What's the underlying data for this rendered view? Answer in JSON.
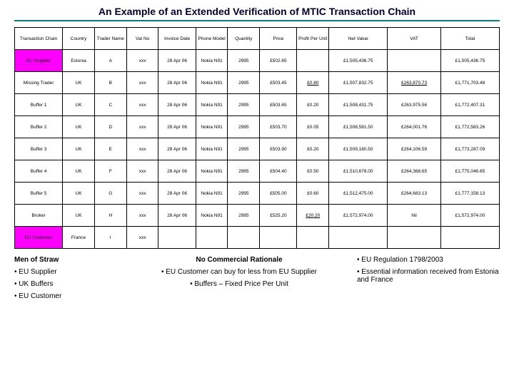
{
  "title": "An Example of an Extended Verification of MTIC Transaction Chain",
  "columns": [
    "Transaction Chain",
    "Country",
    "Trader Name",
    "Vat No",
    "Invoice Date",
    "Phone Model",
    "Quantity",
    "Price",
    "Profit Per Unit",
    "Net Value",
    "VAT",
    "Total"
  ],
  "rows": [
    {
      "chain": "EU Supplier",
      "country": "Estonia",
      "trader": "A",
      "vat": "xxx",
      "date": "28 Apr 06",
      "model": "Nokia N91",
      "qty": "2995",
      "price": "£502.65",
      "profit": "",
      "net": "£1,505,436.75",
      "vatv": "",
      "total": "£1,505,436.75",
      "hl": true
    },
    {
      "chain": "Missing Trader",
      "country": "UK",
      "trader": "B",
      "vat": "xxx",
      "date": "28 Apr 06",
      "model": "Nokia N91",
      "qty": "2995",
      "price": "£503.45",
      "profit": "£0.80",
      "net": "£1,507,832.75",
      "vatv": "£263,870.73",
      "total": "£1,771,703.48",
      "hl": false,
      "ul_profit": true,
      "ul_vat": true
    },
    {
      "chain": "Buffer 1",
      "country": "UK",
      "trader": "C",
      "vat": "xxx",
      "date": "28 Apr 06",
      "model": "Nokia N91",
      "qty": "2995",
      "price": "£503.65",
      "profit": "£0.20",
      "net": "£1,508,431.75",
      "vatv": "£263,975.56",
      "total": "£1,772,407.31",
      "hl": false
    },
    {
      "chain": "Buffer 2",
      "country": "UK",
      "trader": "D",
      "vat": "xxx",
      "date": "28 Apr 06",
      "model": "Nokia N91",
      "qty": "2995",
      "price": "£503.70",
      "profit": "£0.05",
      "net": "£1,508,581.50",
      "vatv": "£264,001.76",
      "total": "£1,772,583.26",
      "hl": false
    },
    {
      "chain": "Buffer 3",
      "country": "UK",
      "trader": "E",
      "vat": "xxx",
      "date": "28 Apr 06",
      "model": "Nokia N91",
      "qty": "2995",
      "price": "£503.90",
      "profit": "£0.20",
      "net": "£1,509,180.50",
      "vatv": "£264,106.59",
      "total": "£1,773,287.09",
      "hl": false
    },
    {
      "chain": "Buffer 4",
      "country": "UK",
      "trader": "F",
      "vat": "xxx",
      "date": "28 Apr 06",
      "model": "Nokia N91",
      "qty": "2995",
      "price": "£504.40",
      "profit": "£0.50",
      "net": "£1,510,678.00",
      "vatv": "£264,368.65",
      "total": "£1,775,046.65",
      "hl": false
    },
    {
      "chain": "Buffer 5",
      "country": "UK",
      "trader": "G",
      "vat": "xxx",
      "date": "28 Apr 06",
      "model": "Nokia N91",
      "qty": "2995",
      "price": "£505.00",
      "profit": "£0.60",
      "net": "£1,512,475.00",
      "vatv": "£264,683.13",
      "total": "£1,777,158.13",
      "hl": false
    },
    {
      "chain": "Broker",
      "country": "UK",
      "trader": "H",
      "vat": "xxx",
      "date": "28 Apr 06",
      "model": "Nokia N91",
      "qty": "2995",
      "price": "£525.20",
      "profit": "£20.20",
      "net": "£1,572,974.00",
      "vatv": "Nil",
      "total": "£1,572,974.00",
      "hl": false,
      "ul_profit": true
    },
    {
      "chain": "EU Customer",
      "country": "France",
      "trader": "I",
      "vat": "xxx",
      "date": "",
      "model": "",
      "qty": "",
      "price": "",
      "profit": "",
      "net": "",
      "vatv": "",
      "total": "",
      "hl": true
    }
  ],
  "bottom": {
    "left_head": "Men of Straw",
    "left_items": [
      "• EU Supplier",
      "• UK Buffers",
      "• EU Customer"
    ],
    "mid_head": "No Commercial Rationale",
    "mid_items": [
      "• EU Customer can buy for less from EU Supplier",
      "• Buffers – Fixed Price Per Unit"
    ],
    "right_items": [
      "• EU Regulation 1798/2003",
      "• Essential information received from Estonia and France"
    ]
  },
  "colors": {
    "teal": "#008080",
    "magenta": "#ff00ff"
  }
}
